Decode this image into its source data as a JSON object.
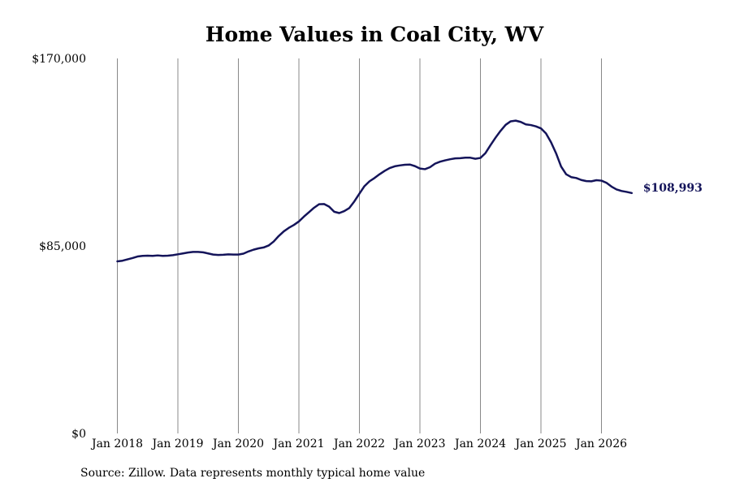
{
  "chart_data": {
    "type": "line",
    "title": "Home Values in Coal City, WV",
    "xlabel": "",
    "ylabel": "",
    "ylim": [
      0,
      170000
    ],
    "y_ticks": [
      0,
      85000,
      170000
    ],
    "y_tick_labels": [
      "$0",
      "$85,000",
      "$170,000"
    ],
    "x_ticks": [
      "2018-01",
      "2019-01",
      "2020-01",
      "2021-01",
      "2022-01",
      "2023-01",
      "2024-01",
      "2025-01",
      "2026-01"
    ],
    "x_tick_labels": [
      "Jan 2018",
      "Jan 2019",
      "Jan 2020",
      "Jan 2021",
      "Jan 2022",
      "Jan 2023",
      "Jan 2024",
      "Jan 2025",
      "Jan 2026"
    ],
    "grid": "vertical lines at x ticks",
    "line_color": "#14145a",
    "end_label": "$108,993",
    "series": [
      {
        "x": [
          "2018-01",
          "2018-02",
          "2018-03",
          "2018-04",
          "2018-05",
          "2018-06",
          "2018-07",
          "2018-08",
          "2018-09",
          "2018-10",
          "2018-11",
          "2018-12",
          "2019-01",
          "2019-02",
          "2019-03",
          "2019-04",
          "2019-05",
          "2019-06",
          "2019-07",
          "2019-08",
          "2019-09",
          "2019-10",
          "2019-11",
          "2019-12",
          "2020-01",
          "2020-02",
          "2020-03",
          "2020-04",
          "2020-05",
          "2020-06",
          "2020-07",
          "2020-08",
          "2020-09",
          "2020-10",
          "2020-11",
          "2020-12",
          "2021-01",
          "2021-02",
          "2021-03",
          "2021-04",
          "2021-05",
          "2021-06",
          "2021-07",
          "2021-08",
          "2021-09",
          "2021-10",
          "2021-11",
          "2021-12",
          "2022-01",
          "2022-02",
          "2022-03",
          "2022-04",
          "2022-05",
          "2022-06",
          "2022-07",
          "2022-08",
          "2022-09",
          "2022-10",
          "2022-11",
          "2022-12",
          "2023-01",
          "2023-02",
          "2023-03",
          "2023-04",
          "2023-05",
          "2023-06",
          "2023-07",
          "2023-08",
          "2023-09",
          "2023-10",
          "2023-11",
          "2023-12",
          "2024-01",
          "2024-02",
          "2024-03",
          "2024-04",
          "2024-05",
          "2024-06",
          "2024-07",
          "2024-08",
          "2024-09",
          "2024-10",
          "2024-11",
          "2024-12",
          "2025-01",
          "2025-02",
          "2025-03",
          "2025-04",
          "2025-05",
          "2025-06",
          "2025-07",
          "2025-08",
          "2025-09",
          "2025-10",
          "2025-11",
          "2025-12",
          "2026-01",
          "2026-02",
          "2026-03",
          "2026-04",
          "2026-05",
          "2026-06",
          "2026-07"
        ],
        "values": [
          78000,
          78300,
          78900,
          79500,
          80200,
          80500,
          80600,
          80500,
          80700,
          80500,
          80600,
          80800,
          81200,
          81600,
          82000,
          82300,
          82300,
          82100,
          81600,
          81100,
          80900,
          81000,
          81200,
          81100,
          81100,
          81500,
          82500,
          83300,
          83900,
          84300,
          85200,
          87000,
          89500,
          91600,
          93200,
          94500,
          96100,
          98300,
          100300,
          102300,
          103900,
          104000,
          102800,
          100500,
          99900,
          100800,
          102200,
          105200,
          108700,
          112100,
          114300,
          115800,
          117500,
          119000,
          120300,
          121100,
          121500,
          121800,
          121900,
          121200,
          120100,
          119800,
          120700,
          122300,
          123200,
          123800,
          124300,
          124700,
          124800,
          125000,
          125000,
          124500,
          124900,
          127100,
          130700,
          134100,
          137200,
          139900,
          141500,
          141800,
          141200,
          140100,
          139800,
          139200,
          138300,
          136000,
          132000,
          127000,
          121000,
          117500,
          116200,
          115800,
          114900,
          114400,
          114300,
          114800,
          114600,
          113600,
          111900,
          110600,
          109900,
          109500,
          108993
        ]
      }
    ]
  },
  "source_text": "Source: Zillow. Data represents monthly typical home value"
}
